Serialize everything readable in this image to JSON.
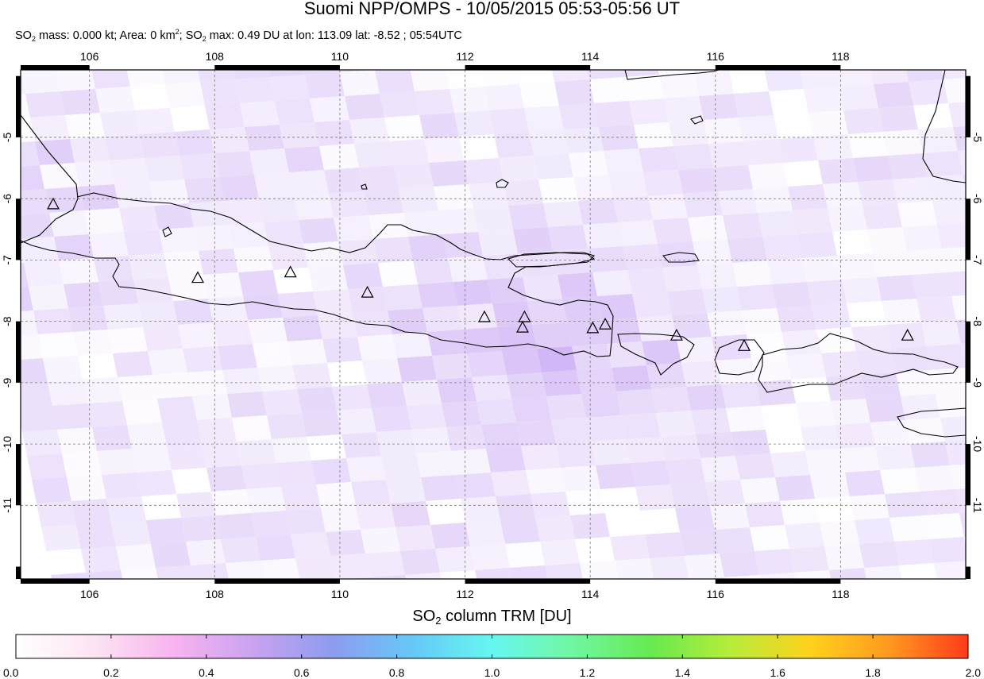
{
  "header": {
    "title": "Suomi NPP/OMPS - 10/05/2015 05:53-05:56 UT",
    "subtitle_parts": [
      "SO",
      "2",
      " mass: 0.000 kt; Area: 0 km",
      "2",
      "; SO",
      "2",
      " max: 0.49 DU at lon: 113.09 lat: -8.52 ; 05:54UTC"
    ]
  },
  "map": {
    "lon_range": [
      104.9,
      120.0
    ],
    "lat_range": [
      -12.2,
      -3.9
    ],
    "lon_ticks": [
      "106",
      "108",
      "110",
      "112",
      "114",
      "116",
      "118"
    ],
    "lat_ticks": [
      "-5",
      "-6",
      "-7",
      "-8",
      "-9",
      "-10",
      "-11"
    ],
    "gridlines": true,
    "volcanoes": [
      {
        "lon": 105.42,
        "lat": -6.1
      },
      {
        "lon": 107.73,
        "lat": -7.3
      },
      {
        "lon": 109.21,
        "lat": -7.21
      },
      {
        "lon": 110.44,
        "lat": -7.54
      },
      {
        "lon": 112.31,
        "lat": -7.94
      },
      {
        "lon": 112.95,
        "lat": -7.94
      },
      {
        "lon": 112.92,
        "lat": -8.11
      },
      {
        "lon": 114.04,
        "lat": -8.12
      },
      {
        "lon": 114.24,
        "lat": -8.06
      },
      {
        "lon": 115.38,
        "lat": -8.24
      },
      {
        "lon": 116.46,
        "lat": -8.41
      },
      {
        "lon": 119.07,
        "lat": -8.24
      }
    ],
    "so2_max_point": {
      "lon": 113.09,
      "lat": -8.52,
      "value": 0.49
    }
  },
  "colorbar": {
    "title_main": "SO",
    "title_sub": "2",
    "title_rest": " column TRM [DU]",
    "ticks": [
      "0.0",
      "0.2",
      "0.4",
      "0.6",
      "0.8",
      "1.0",
      "1.2",
      "1.4",
      "1.6",
      "1.8",
      "2.0"
    ],
    "range": [
      0.0,
      2.0
    ],
    "colors": [
      "#ffffff",
      "#fde3f3",
      "#f7b3ef",
      "#c9a3f0",
      "#8d9cf0",
      "#66c8f7",
      "#66f7f0",
      "#70f7a3",
      "#66ea4f",
      "#b7ec3a",
      "#ffd21c",
      "#ff9a1f",
      "#ff3a1a"
    ]
  }
}
